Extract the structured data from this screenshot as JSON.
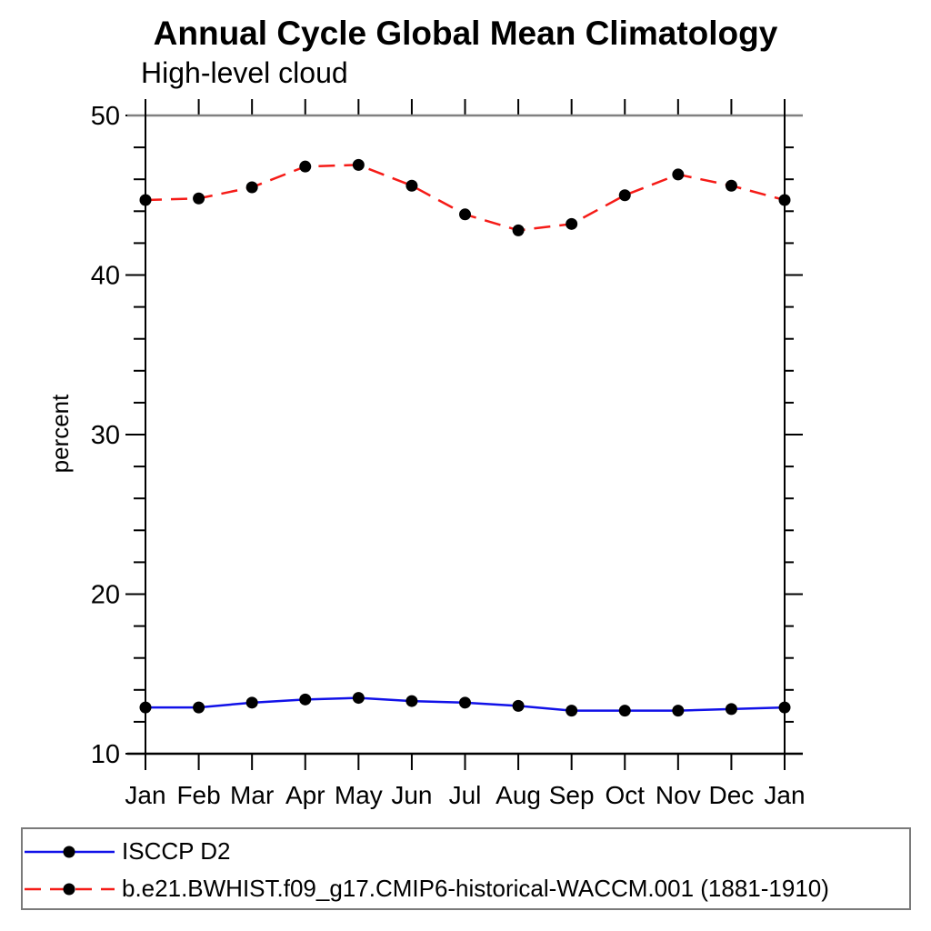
{
  "header": {
    "title": "Annual Cycle Global Mean Climatology",
    "subtitle": "High-level cloud"
  },
  "chart_data": {
    "type": "line",
    "title": "Annual Cycle Global Mean Climatology",
    "subtitle": "High-level cloud",
    "xlabel": "",
    "ylabel": "percent",
    "categories": [
      "Jan",
      "Feb",
      "Mar",
      "Apr",
      "May",
      "Jun",
      "Jul",
      "Aug",
      "Sep",
      "Oct",
      "Nov",
      "Dec",
      "Jan"
    ],
    "series": [
      {
        "name": "ISCCP D2",
        "color": "#1111e8",
        "line_style": "solid",
        "marker": "filled-circle",
        "marker_color": "#000000",
        "values": [
          12.9,
          12.9,
          13.2,
          13.4,
          13.5,
          13.3,
          13.2,
          13.0,
          12.7,
          12.7,
          12.7,
          12.8,
          12.9
        ]
      },
      {
        "name": "b.e21.BWHIST.f09_g17.CMIP6-historical-WACCM.001 (1881-1910)",
        "color": "#f51b17",
        "line_style": "dashed",
        "marker": "filled-circle",
        "marker_color": "#000000",
        "values": [
          44.7,
          44.8,
          45.5,
          46.8,
          46.9,
          45.6,
          43.8,
          42.8,
          43.2,
          45.0,
          46.3,
          45.6,
          44.7
        ]
      }
    ],
    "ylim": [
      10,
      50
    ],
    "y_major_step": 10,
    "y_minor_step": 2,
    "grid": false,
    "legend_position": "bottom-left-box",
    "axis_colors": {
      "top_border": "#808080",
      "other_borders": "#000000",
      "ticks": "#000000"
    }
  }
}
